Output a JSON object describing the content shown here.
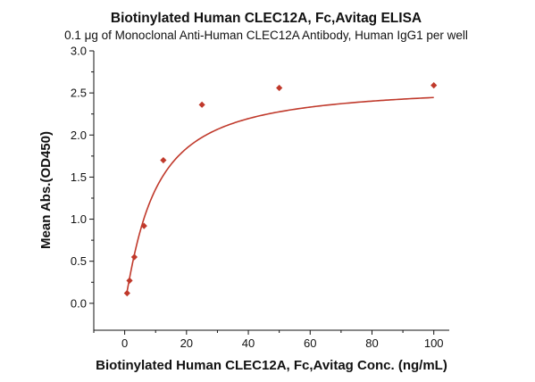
{
  "chart_data": {
    "type": "scatter",
    "title": "Biotinylated Human CLEC12A, Fc,Avitag ELISA",
    "subtitle": "0.1 μg of Monoclonal Anti-Human CLEC12A Antibody, Human IgG1 per well",
    "xlabel": "Biotinylated Human CLEC12A, Fc,Avitag Conc. (ng/mL)",
    "ylabel": "Mean Abs.(OD450)",
    "xlim": [
      -10,
      105
    ],
    "ylim": [
      -0.32,
      3.0
    ],
    "xticks": [
      "0",
      "20",
      "40",
      "60",
      "80",
      "100"
    ],
    "xtick_values": [
      0,
      20,
      40,
      60,
      80,
      100
    ],
    "yticks": [
      "0.0",
      "0.5",
      "1.0",
      "1.5",
      "2.0",
      "2.5",
      "3.0"
    ],
    "ytick_values": [
      0,
      0.5,
      1.0,
      1.5,
      2.0,
      2.5,
      3.0
    ],
    "grid": false,
    "legend": "none",
    "series": [
      {
        "x": [
          0.78,
          1.56,
          3.125,
          6.25,
          12.5,
          25,
          50,
          100
        ],
        "y": [
          0.12,
          0.27,
          0.55,
          0.92,
          1.7,
          2.36,
          2.56,
          2.59
        ],
        "marker": "diamond",
        "fit_curve": true,
        "color": "#c0392b"
      }
    ]
  }
}
